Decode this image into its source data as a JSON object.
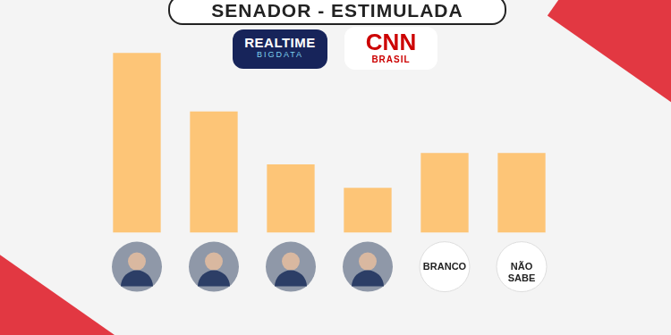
{
  "chart_data": {
    "type": "bar",
    "title": "SENADOR - ESTIMULADA",
    "annotations": [
      "REALTIME",
      "BIGDATA",
      "CNN",
      "BRASIL"
    ],
    "categories": [
      null,
      null,
      null,
      null,
      "BRANCO",
      "NÃO SABE"
    ],
    "values": [
      36,
      24.3,
      13.7,
      9,
      16,
      16
    ],
    "color": "#fdc577",
    "ylim": [
      0,
      40
    ],
    "grid": false,
    "tick_labels": "x"
  }
}
